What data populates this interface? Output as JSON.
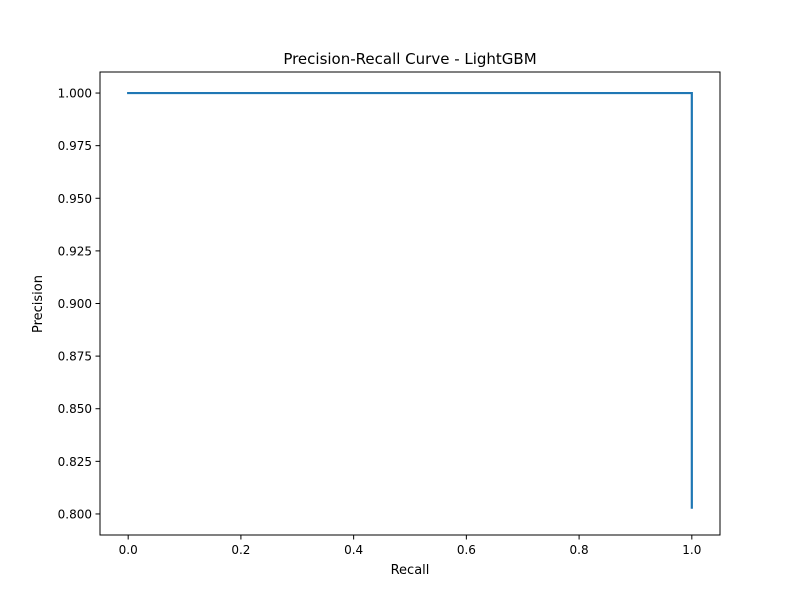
{
  "chart_data": {
    "type": "line",
    "title": "Precision-Recall Curve - LightGBM",
    "xlabel": "Recall",
    "ylabel": "Precision",
    "xlim": [
      -0.05,
      1.05
    ],
    "ylim": [
      0.79,
      1.01
    ],
    "xticks": [
      0.0,
      0.2,
      0.4,
      0.6,
      0.8,
      1.0
    ],
    "xtick_labels": [
      "0.0",
      "0.2",
      "0.4",
      "0.6",
      "0.8",
      "1.0"
    ],
    "yticks": [
      0.8,
      0.825,
      0.85,
      0.875,
      0.9,
      0.925,
      0.95,
      0.975,
      1.0
    ],
    "ytick_labels": [
      "0.800",
      "0.825",
      "0.850",
      "0.875",
      "0.900",
      "0.925",
      "0.950",
      "0.975",
      "1.000"
    ],
    "grid": false,
    "series": [
      {
        "color": "#1f77b4",
        "x": [
          0.0,
          1.0,
          1.0
        ],
        "y": [
          1.0,
          1.0,
          0.803
        ]
      }
    ]
  }
}
